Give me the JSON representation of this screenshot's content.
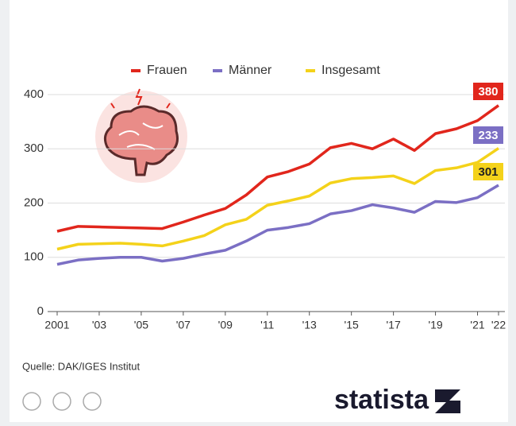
{
  "chart_data": {
    "type": "line",
    "x": [
      2001,
      2002,
      2003,
      2004,
      2005,
      2006,
      2007,
      2008,
      2009,
      2010,
      2011,
      2012,
      2013,
      2014,
      2015,
      2016,
      2017,
      2018,
      2019,
      2020,
      2021,
      2022
    ],
    "series": [
      {
        "name": "Frauen",
        "color": "#e1261c",
        "values": [
          148,
          157,
          156,
          155,
          154,
          153,
          165,
          178,
          190,
          215,
          248,
          258,
          272,
          302,
          310,
          300,
          318,
          297,
          328,
          337,
          352,
          380
        ]
      },
      {
        "name": "Männer",
        "color": "#7b6fc4",
        "values": [
          87,
          95,
          98,
          100,
          100,
          93,
          98,
          106,
          113,
          130,
          150,
          155,
          162,
          180,
          186,
          197,
          191,
          183,
          203,
          201,
          210,
          233
        ]
      },
      {
        "name": "Insgesamt",
        "color": "#f4d21a",
        "values": [
          115,
          124,
          125,
          126,
          124,
          121,
          130,
          140,
          160,
          170,
          196,
          204,
          213,
          237,
          245,
          247,
          250,
          236,
          260,
          265,
          275,
          301
        ]
      }
    ],
    "xlim": [
      2001,
      2022
    ],
    "xticks": [
      2001,
      {
        "value": 2003,
        "label": "'03"
      },
      {
        "value": 2005,
        "label": "'05"
      },
      {
        "value": 2007,
        "label": "'07"
      },
      {
        "value": 2009,
        "label": "'09"
      },
      {
        "value": 2011,
        "label": "'11"
      },
      {
        "value": 2013,
        "label": "'13"
      },
      {
        "value": 2015,
        "label": "'15"
      },
      {
        "value": 2017,
        "label": "'17"
      },
      {
        "value": 2019,
        "label": "'19"
      },
      {
        "value": 2021,
        "label": "'21"
      },
      {
        "value": 2022,
        "label": "'22"
      }
    ],
    "ylim": [
      0,
      400
    ],
    "yticks": [
      0,
      100,
      200,
      300,
      400
    ],
    "grid": true,
    "source": "Quelle: DAK/IGES Institut",
    "brand": "statista"
  }
}
